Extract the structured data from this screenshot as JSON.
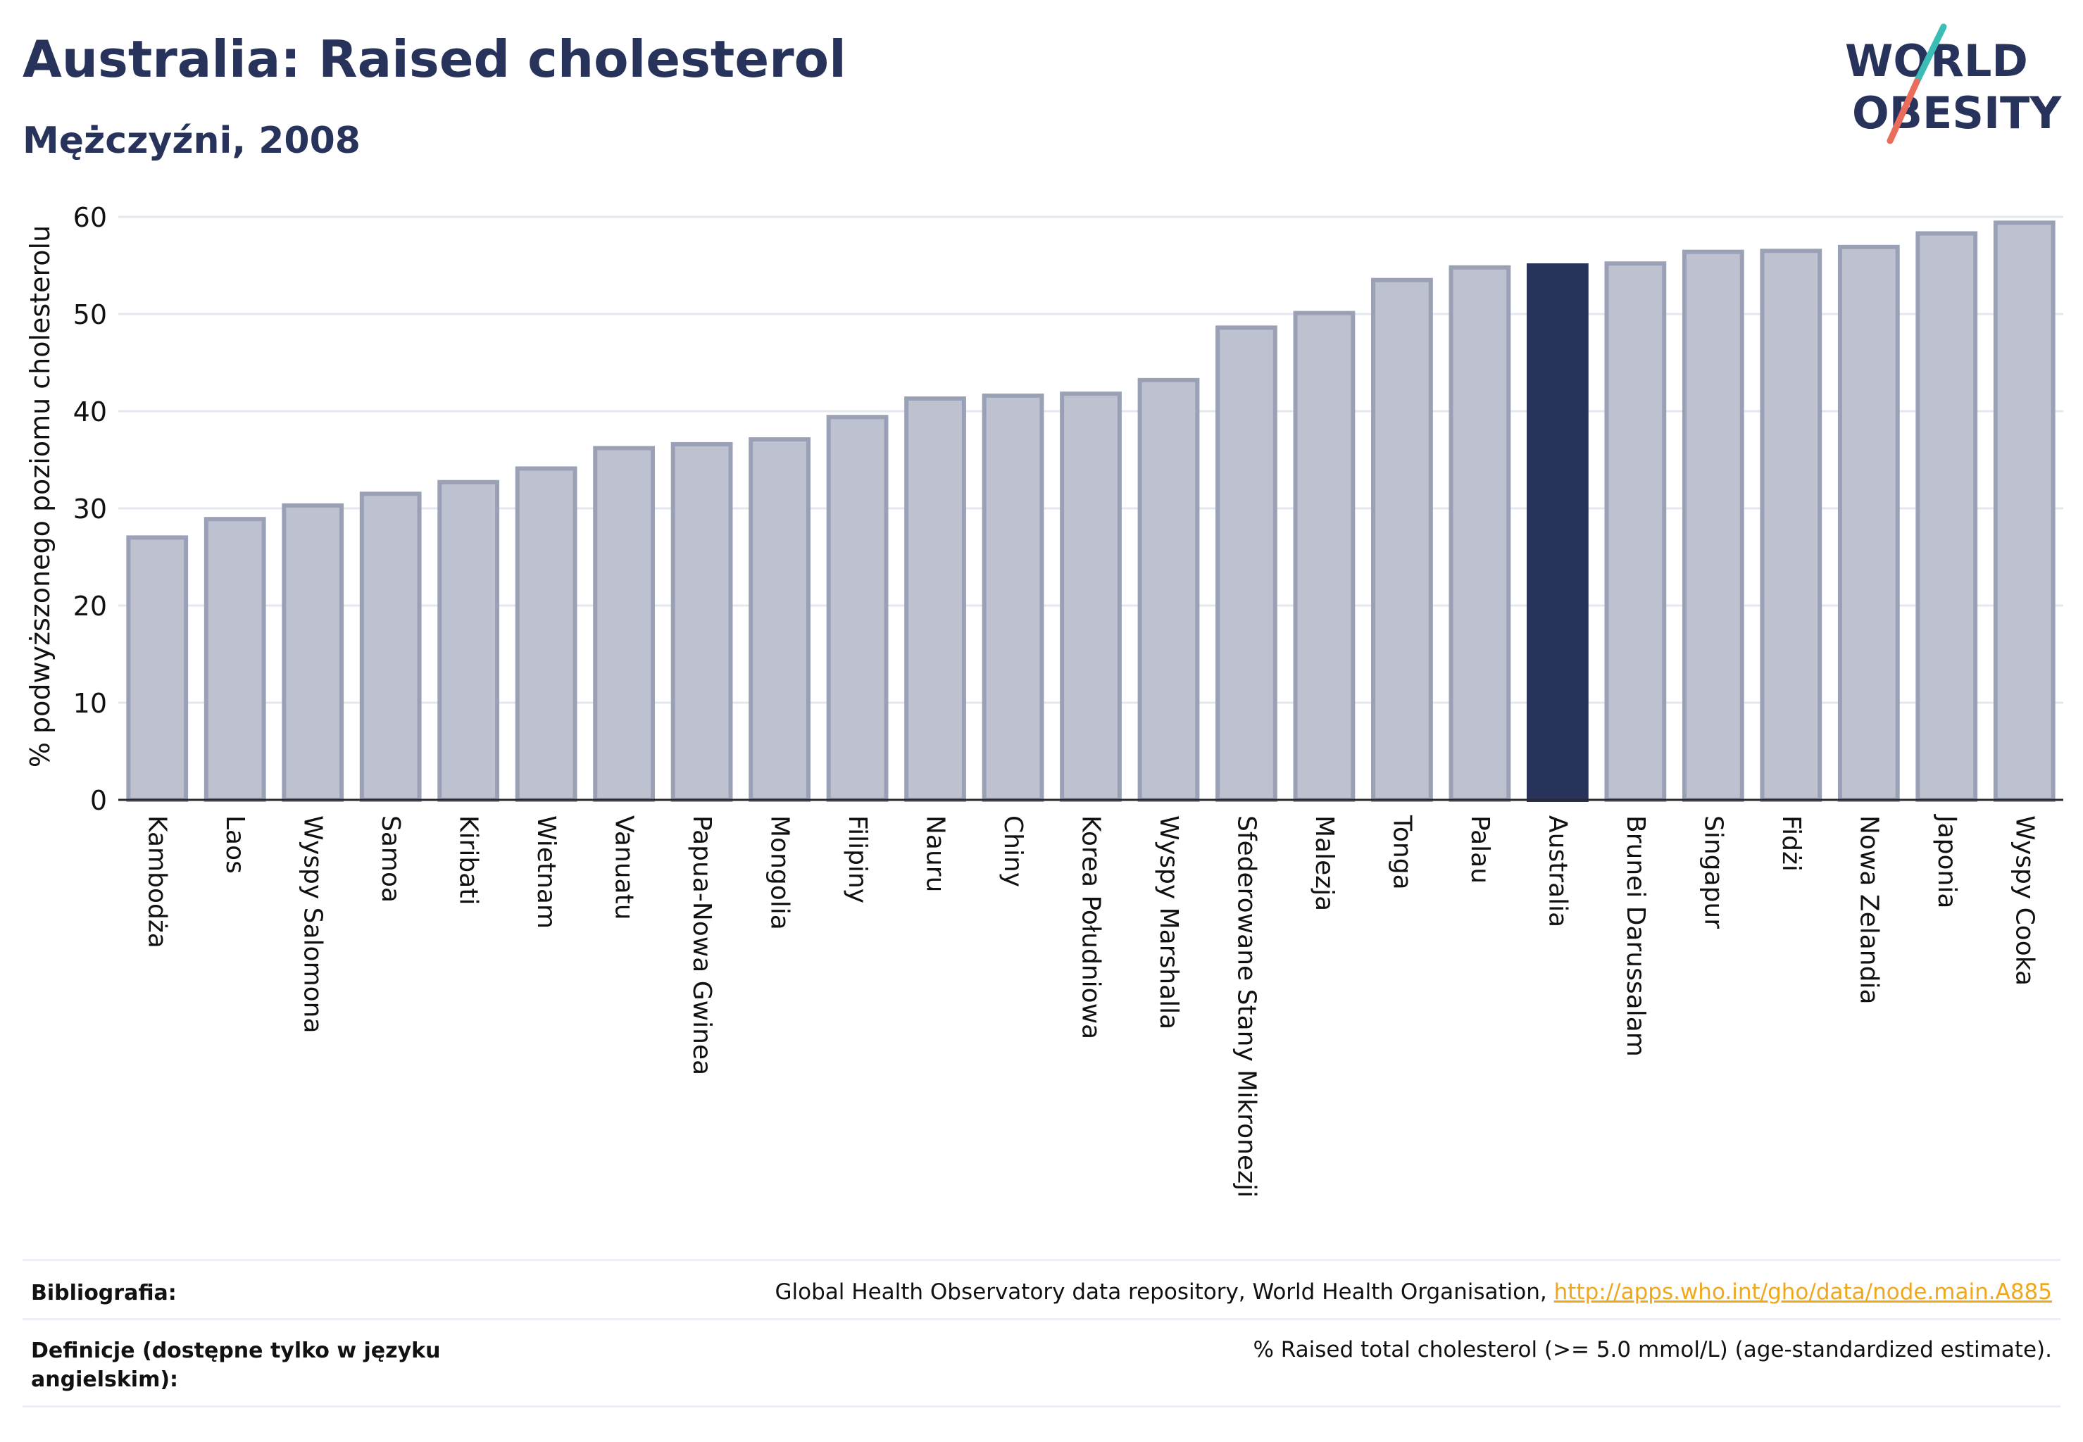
{
  "header": {
    "title": "Australia: Raised cholesterol",
    "subtitle": "Mężczyźni, 2008",
    "logo_line1": "WORLD",
    "logo_line2": "OBESITY"
  },
  "colors": {
    "bar": "#bec2d0",
    "bar_stroke": "#9aa0b6",
    "highlight": "#28335c",
    "axis": "#2a2a2a",
    "grid": "#e6e7ee",
    "logo_teal": "#3bbdb5",
    "logo_coral": "#ea6d5c"
  },
  "chart_data": {
    "type": "bar",
    "title": "Australia: Raised cholesterol",
    "subtitle": "Mężczyźni, 2008",
    "xlabel": "",
    "ylabel": "% podwyższonego poziomu cholesterolu",
    "ylim": [
      0,
      60
    ],
    "yticks": [
      0,
      10,
      20,
      30,
      40,
      50,
      60
    ],
    "grid": true,
    "highlight": "Australia",
    "categories": [
      "Kambodża",
      "Laos",
      "Wyspy Salomona",
      "Samoa",
      "Kiribati",
      "Wietnam",
      "Vanuatu",
      "Papua-Nowa Gwinea",
      "Mongolia",
      "Filipiny",
      "Nauru",
      "Chiny",
      "Korea Południowa",
      "Wyspy Marshalla",
      "Sfederowane Stany Mikronezji",
      "Malezja",
      "Tonga",
      "Palau",
      "Australia",
      "Brunei Darussalam",
      "Singapur",
      "Fidżi",
      "Nowa Zelandia",
      "Japonia",
      "Wyspy Cooka"
    ],
    "values": [
      27.0,
      28.9,
      30.3,
      31.5,
      32.7,
      34.1,
      36.2,
      36.6,
      37.1,
      39.4,
      41.3,
      41.6,
      41.8,
      43.2,
      48.6,
      50.1,
      53.5,
      54.8,
      55.0,
      55.2,
      56.4,
      56.5,
      56.9,
      58.3,
      59.4
    ]
  },
  "footer": {
    "bibliography_label": "Bibliografia:",
    "bibliography_text": "Global Health Observatory data repository, World Health Organisation, ",
    "bibliography_link": "http://apps.who.int/gho/data/node.main.A885",
    "definitions_label_line1": "Definicje (dostępne tylko w języku",
    "definitions_label_line2": "angielskim):",
    "definitions_text": "% Raised total cholesterol (>= 5.0 mmol/L) (age-standardized estimate)."
  }
}
